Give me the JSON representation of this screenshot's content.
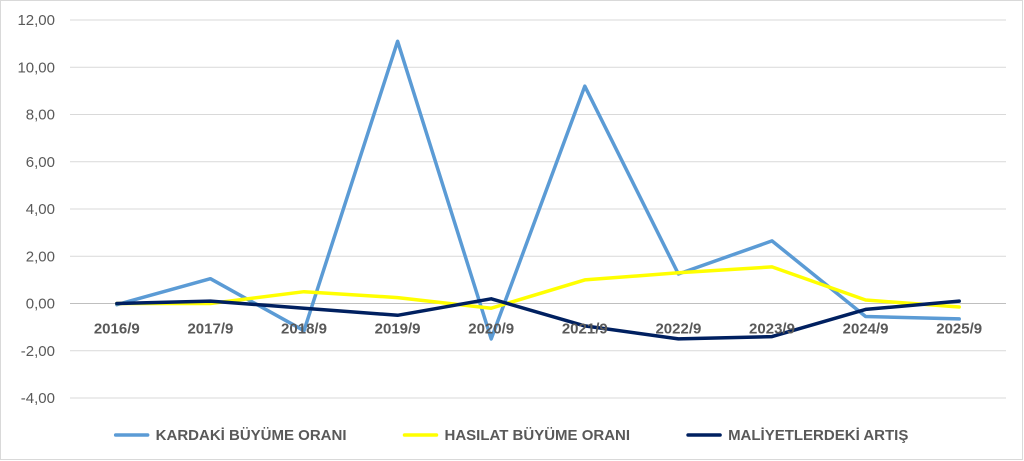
{
  "chart_data": {
    "type": "line",
    "categories": [
      "2016/9",
      "2017/9",
      "2018/9",
      "2019/9",
      "2020/9",
      "2021/9",
      "2022/9",
      "2023/9",
      "2024/9",
      "2025/9"
    ],
    "series": [
      {
        "name": "KARDAKİ BÜYÜME ORANI",
        "color": "#5b9bd5",
        "values": [
          -0.05,
          1.05,
          -1.15,
          11.1,
          -1.5,
          9.2,
          1.25,
          2.65,
          -0.55,
          -0.65
        ]
      },
      {
        "name": "HASILAT BÜYÜME ORANI",
        "color": "#ffff00",
        "values": [
          0.0,
          0.0,
          0.5,
          0.25,
          -0.2,
          1.0,
          1.3,
          1.55,
          0.15,
          -0.15
        ]
      },
      {
        "name": "MALİYETLERDEKİ ARTIŞ",
        "color": "#002060",
        "values": [
          0.0,
          0.1,
          -0.2,
          -0.5,
          0.2,
          -0.95,
          -1.5,
          -1.4,
          -0.25,
          0.1
        ]
      }
    ],
    "yticks": [
      "-4,00",
      "-2,00",
      "0,00",
      "2,00",
      "4,00",
      "6,00",
      "8,00",
      "10,00",
      "12,00"
    ],
    "ylim": [
      -4,
      12
    ],
    "grid": "horizontal",
    "legend_position": "bottom",
    "title": "",
    "xlabel": "",
    "ylabel": ""
  }
}
